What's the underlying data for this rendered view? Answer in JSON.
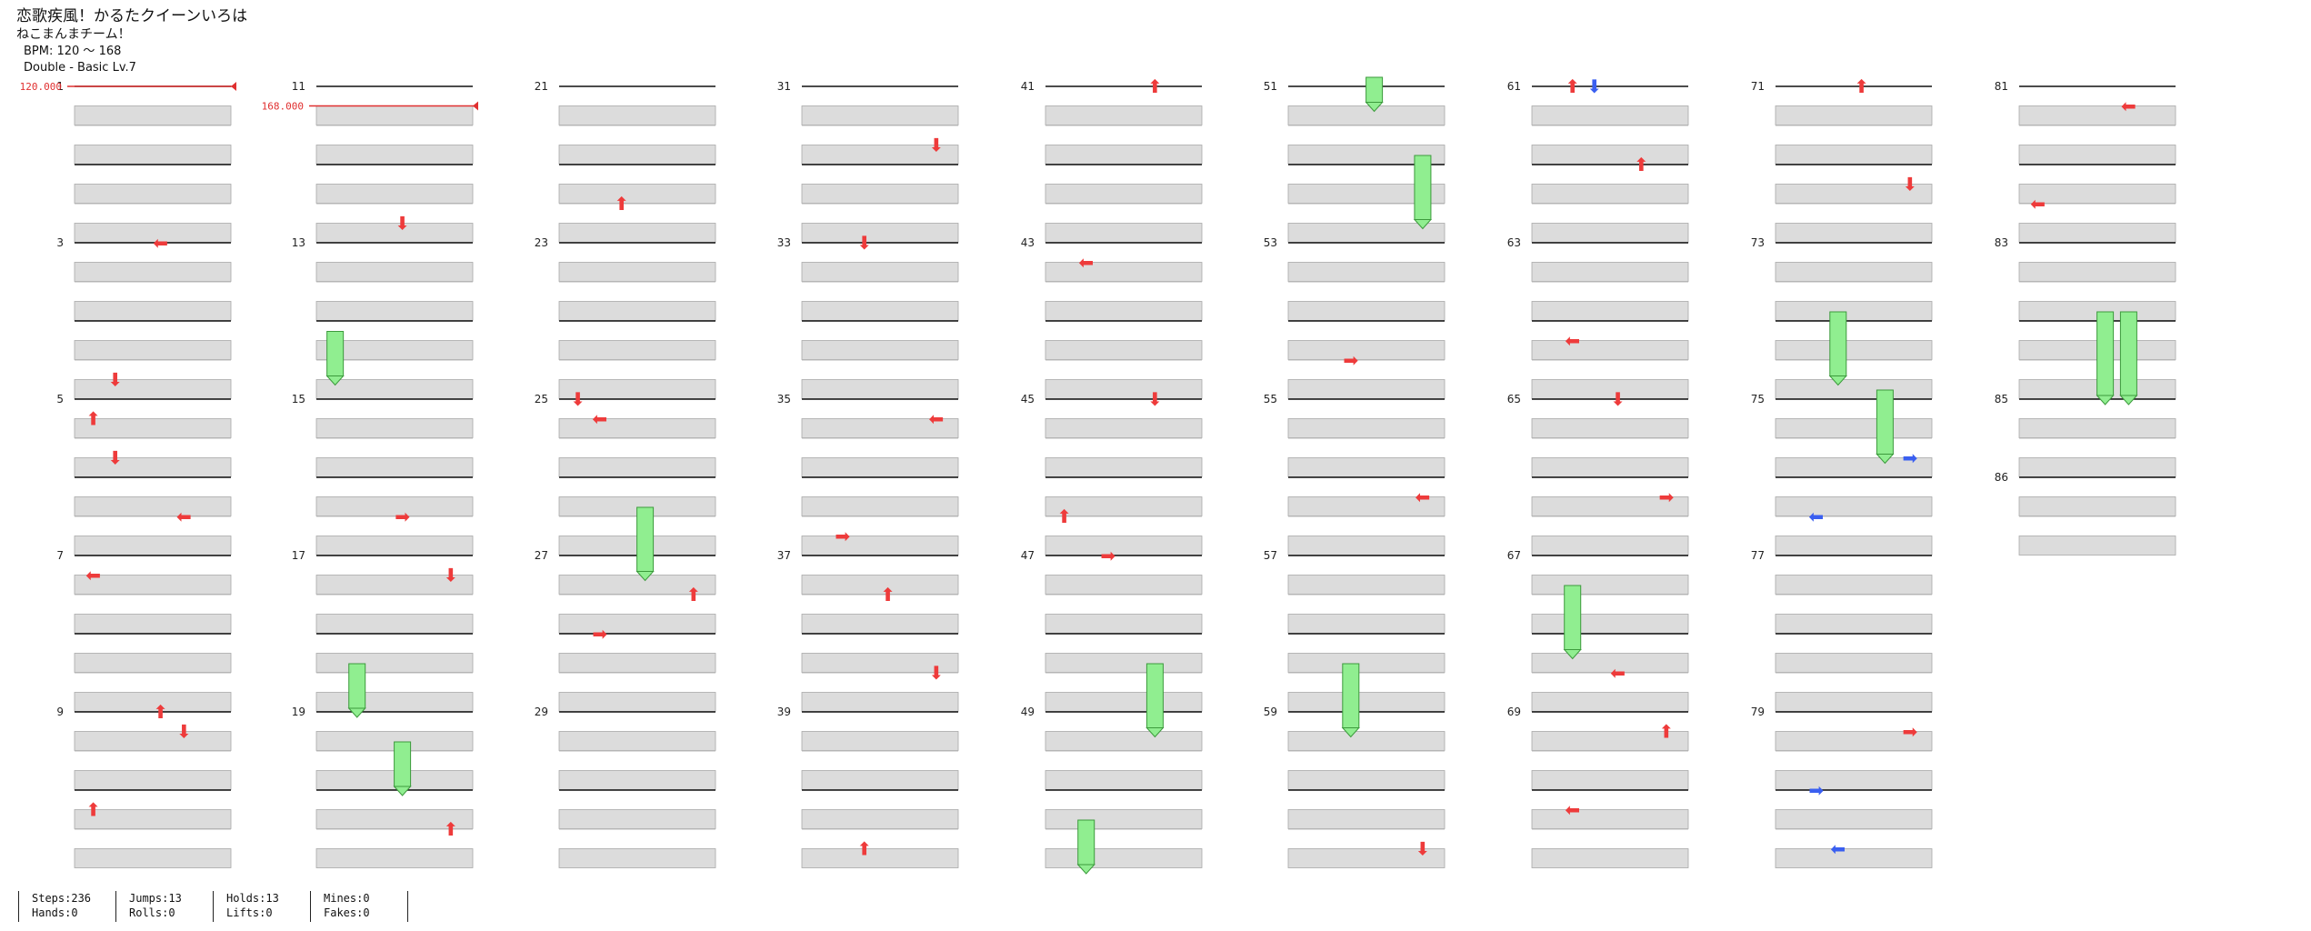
{
  "song": {
    "title": "恋歌疾風！かるたクイーンいろは",
    "artist": "ねこまんまチーム！",
    "bpm": "BPM: 120 ～ 168",
    "difficulty": "Double - Basic  Lv.7"
  },
  "bpm_changes": [
    {
      "measure": 1,
      "beat": 0,
      "label": "120.000"
    },
    {
      "measure": 11,
      "beat": 1,
      "label": "168.000"
    }
  ],
  "measures_per_column": 10,
  "measure_count": 86,
  "colors": {
    "tap": "#ee3b3b",
    "tap_blue": "#3a5ff0",
    "hold": "#90ee90",
    "bpm_line": "#e03030"
  },
  "notes": [
    {
      "m": 3,
      "b": 0,
      "t": "tap",
      "ch": "⬅"
    },
    {
      "m": 5,
      "b": 1,
      "t": "tap",
      "ch": "⬆"
    },
    {
      "m": 5,
      "b": 3,
      "t": "tap",
      "ch": "⬇"
    },
    {
      "m": 4,
      "b": 3,
      "t": "tap",
      "ch": "⬇"
    },
    {
      "m": 6,
      "b": 2,
      "t": "tap",
      "ch": "⬅"
    },
    {
      "m": 7,
      "b": 1,
      "t": "tap",
      "ch": "⬅"
    },
    {
      "m": 9,
      "b": 0,
      "t": "tap",
      "ch": "⬆"
    },
    {
      "m": 9,
      "b": 1,
      "t": "tap",
      "ch": "⬇"
    },
    {
      "m": 10,
      "b": 1,
      "t": "tap",
      "ch": "⬆"
    },
    {
      "m": 12,
      "b": 3,
      "t": "tap",
      "ch": "⬇"
    },
    {
      "m": 14,
      "b": 1,
      "t": "hold",
      "len": 2
    },
    {
      "m": 16,
      "b": 2,
      "t": "tap",
      "ch": "➡"
    },
    {
      "m": 17,
      "b": 1,
      "t": "tap",
      "ch": "⬇"
    },
    {
      "m": 18,
      "b": 2,
      "t": "hold",
      "len": 2
    },
    {
      "m": 19,
      "b": 2,
      "t": "hold",
      "len": 2
    },
    {
      "m": 20,
      "b": 2,
      "t": "tap",
      "ch": "⬆"
    },
    {
      "m": 22,
      "b": 2,
      "t": "tap",
      "ch": "⬆"
    },
    {
      "m": 25,
      "b": 0,
      "t": "tap",
      "ch": "⬇"
    },
    {
      "m": 25,
      "b": 1,
      "t": "tap",
      "ch": "⬅"
    },
    {
      "m": 26,
      "b": 2,
      "t": "hold",
      "len": 3
    },
    {
      "m": 27,
      "b": 2,
      "t": "tap",
      "ch": "⬆"
    },
    {
      "m": 28,
      "b": 0,
      "t": "tap",
      "ch": "➡"
    },
    {
      "m": 31,
      "b": 3,
      "t": "tap",
      "ch": "⬇"
    },
    {
      "m": 33,
      "b": 0,
      "t": "tap",
      "ch": "⬇"
    },
    {
      "m": 35,
      "b": 1,
      "t": "tap",
      "ch": "⬅"
    },
    {
      "m": 36,
      "b": 3,
      "t": "tap",
      "ch": "➡"
    },
    {
      "m": 37,
      "b": 2,
      "t": "tap",
      "ch": "⬆"
    },
    {
      "m": 38,
      "b": 2,
      "t": "tap",
      "ch": "⬇"
    },
    {
      "m": 40,
      "b": 3,
      "t": "tap",
      "ch": "⬆"
    },
    {
      "m": 41,
      "b": 0,
      "t": "tap",
      "ch": "⬆"
    },
    {
      "m": 43,
      "b": 1,
      "t": "tap",
      "ch": "⬅"
    },
    {
      "m": 45,
      "b": 0,
      "t": "tap",
      "ch": "⬇"
    },
    {
      "m": 46,
      "b": 2,
      "t": "tap",
      "ch": "⬆"
    },
    {
      "m": 47,
      "b": 0,
      "t": "tap",
      "ch": "➡"
    },
    {
      "m": 48,
      "b": 2,
      "t": "hold",
      "len": 3
    },
    {
      "m": 50,
      "b": 2,
      "t": "hold",
      "len": 2
    },
    {
      "m": 51,
      "b": 0,
      "t": "hold",
      "len": 1
    },
    {
      "m": 52,
      "b": 0,
      "t": "hold",
      "len": 3
    },
    {
      "m": 54,
      "b": 2,
      "t": "tap",
      "ch": "➡"
    },
    {
      "m": 56,
      "b": 1,
      "t": "tap",
      "ch": "⬅"
    },
    {
      "m": 58,
      "b": 2,
      "t": "hold",
      "len": 3
    },
    {
      "m": 60,
      "b": 3,
      "t": "tap",
      "ch": "⬇"
    },
    {
      "m": 61,
      "b": 0,
      "t": "tap",
      "ch": "⬆"
    },
    {
      "m": 61,
      "b": 0,
      "t": "tap_blue",
      "ch": "⬇"
    },
    {
      "m": 62,
      "b": 0,
      "t": "tap",
      "ch": "⬆"
    },
    {
      "m": 64,
      "b": 1,
      "t": "tap",
      "ch": "⬅"
    },
    {
      "m": 65,
      "b": 0,
      "t": "tap",
      "ch": "⬇"
    },
    {
      "m": 66,
      "b": 1,
      "t": "tap",
      "ch": "➡"
    },
    {
      "m": 67,
      "b": 2,
      "t": "hold",
      "len": 3
    },
    {
      "m": 68,
      "b": 2,
      "t": "tap",
      "ch": "⬅"
    },
    {
      "m": 69,
      "b": 1,
      "t": "tap",
      "ch": "⬆"
    },
    {
      "m": 70,
      "b": 1,
      "t": "tap",
      "ch": "⬅"
    },
    {
      "m": 71,
      "b": 0,
      "t": "tap",
      "ch": "⬆"
    },
    {
      "m": 72,
      "b": 1,
      "t": "tap",
      "ch": "⬇"
    },
    {
      "m": 74,
      "b": 0,
      "t": "hold",
      "len": 3
    },
    {
      "m": 75,
      "b": 0,
      "t": "hold",
      "len": 3
    },
    {
      "m": 75,
      "b": 3,
      "t": "tap_blue",
      "ch": "➡"
    },
    {
      "m": 76,
      "b": 2,
      "t": "tap_blue",
      "ch": "⬅"
    },
    {
      "m": 79,
      "b": 1,
      "t": "tap",
      "ch": "➡"
    },
    {
      "m": 80,
      "b": 0,
      "t": "tap_blue",
      "ch": "➡"
    },
    {
      "m": 80,
      "b": 3,
      "t": "tap_blue",
      "ch": "⬅"
    },
    {
      "m": 81,
      "b": 1,
      "t": "tap",
      "ch": "⬅"
    },
    {
      "m": 82,
      "b": 2,
      "t": "tap",
      "ch": "⬅"
    },
    {
      "m": 84,
      "b": 0,
      "t": "hold",
      "len": 4
    },
    {
      "m": 84,
      "b": 0,
      "t": "hold",
      "len": 4
    }
  ],
  "footer": {
    "groups": [
      {
        "line1": "Steps:236",
        "line2": "Hands:0"
      },
      {
        "line1": "Jumps:13",
        "line2": "Rolls:0"
      },
      {
        "line1": "Holds:13",
        "line2": "Lifts:0"
      },
      {
        "line1": "Mines:0",
        "line2": "Fakes:0"
      }
    ]
  }
}
